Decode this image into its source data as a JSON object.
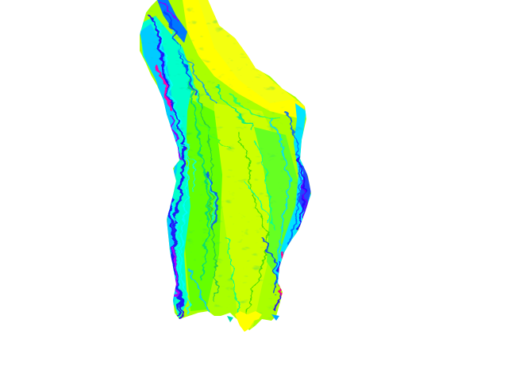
{
  "map": {
    "kind": "slope-shaded terrain raster",
    "background_color": "#ffffff",
    "palette": {
      "flat": "#ffff00",
      "low": "#aaff00",
      "mid_low": "#66ff00",
      "mid": "#22ff44",
      "mid_high": "#00ffcc",
      "high": "#00e5ff",
      "steep": "#0088ff",
      "steeper": "#2200ff",
      "steepest": "#8800ff",
      "extreme": "#ff00aa"
    }
  }
}
